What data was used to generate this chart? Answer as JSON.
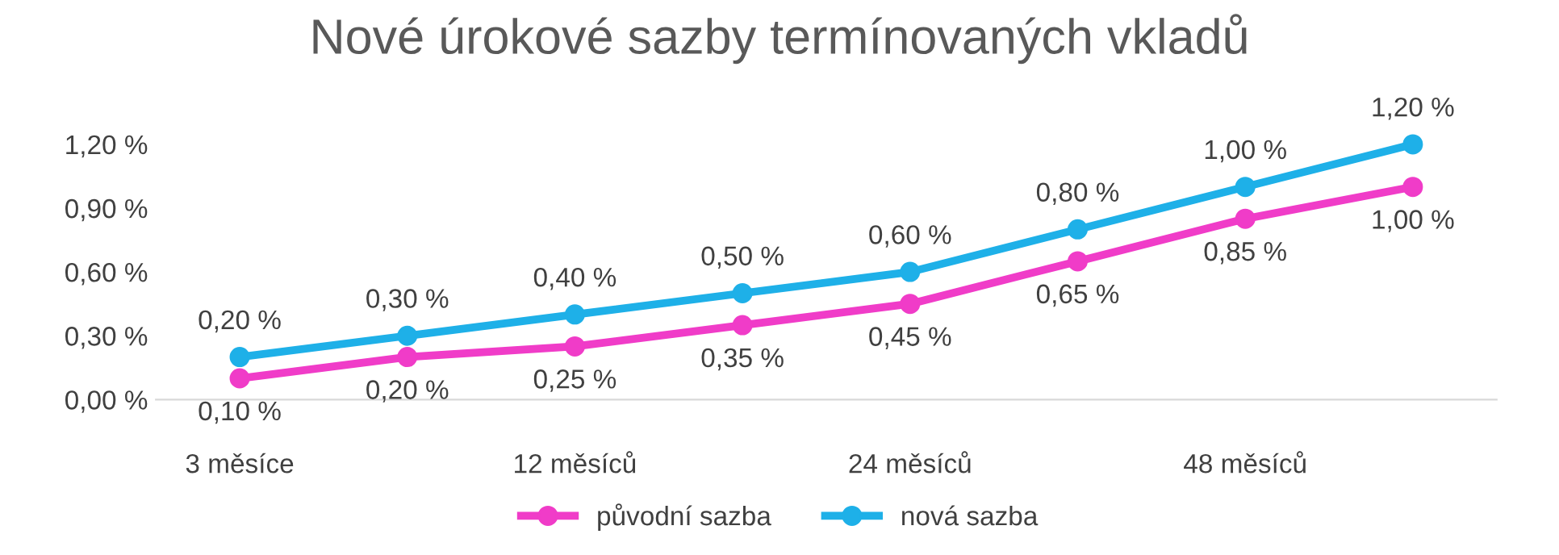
{
  "chart_data": {
    "type": "line",
    "title": "Nové úrokové sazby termínovaných vkladů",
    "categories": [
      "3 měsíce",
      null,
      "12 měsíců",
      null,
      "24 měsíců",
      null,
      "48 měsíců",
      null
    ],
    "series": [
      {
        "name": "původní sazba",
        "color": "#f03cc8",
        "values": [
          0.1,
          0.2,
          0.25,
          0.35,
          0.45,
          0.65,
          0.85,
          1.0
        ],
        "value_labels": [
          "0,10 %",
          "0,20 %",
          "0,25 %",
          "0,35 %",
          "0,45 %",
          "0,65 %",
          "0,85 %",
          "1,00 %"
        ]
      },
      {
        "name": "nová sazba",
        "color": "#1eb0e8",
        "values": [
          0.2,
          0.3,
          0.4,
          0.5,
          0.6,
          0.8,
          1.0,
          1.2
        ],
        "value_labels": [
          "0,20 %",
          "0,30 %",
          "0,40 %",
          "0,50 %",
          "0,60 %",
          "0,80 %",
          "1,00 %",
          "1,20 %"
        ]
      }
    ],
    "ylim": [
      0,
      1.2
    ],
    "yticks": [
      {
        "value": 0,
        "label": "0,00 %"
      },
      {
        "value": 0.3,
        "label": "0,30 %"
      },
      {
        "value": 0.6,
        "label": "0,60 %"
      },
      {
        "value": 0.9,
        "label": "0,90 %"
      },
      {
        "value": 1.2,
        "label": "1,20 %"
      }
    ],
    "grid": false,
    "legend": "bottom",
    "marker": "circle",
    "line_style": "solid"
  }
}
